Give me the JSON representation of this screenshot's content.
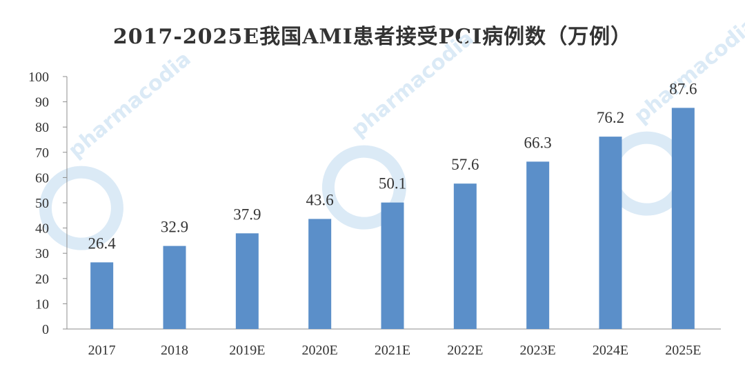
{
  "chart_data": {
    "type": "bar",
    "title": "2017-2025E我国AMI患者接受PCI病例数（万例）",
    "xlabel": "",
    "ylabel": "",
    "categories": [
      "2017",
      "2018",
      "2019E",
      "2020E",
      "2021E",
      "2022E",
      "2023E",
      "2024E",
      "2025E"
    ],
    "values": [
      26.4,
      32.9,
      37.9,
      43.6,
      50.1,
      57.6,
      66.3,
      76.2,
      87.6
    ],
    "value_labels": [
      "26.4",
      "32.9",
      "37.9",
      "43.6",
      "50.1",
      "57.6",
      "66.3",
      "76.2",
      "87.6"
    ],
    "ylim": [
      0,
      100
    ],
    "yticks": [
      "0",
      "10",
      "20",
      "30",
      "40",
      "50",
      "60",
      "70",
      "80",
      "90",
      "100"
    ],
    "grid": false,
    "legend": "none",
    "bar_color": "#5b8fc9"
  },
  "watermark": {
    "text": "pharmacodia",
    "color": "#dbeaf6"
  }
}
